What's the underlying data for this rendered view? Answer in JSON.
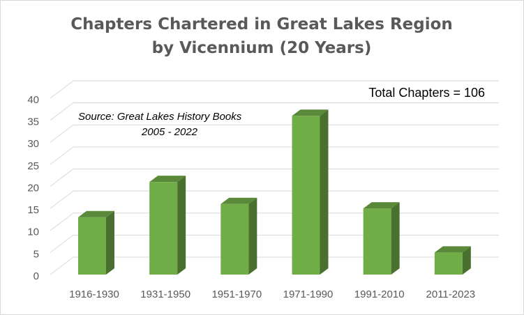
{
  "chart_data": {
    "type": "bar3d",
    "title": "Chapters Chartered in Great Lakes Region by Vicennium (20 Years)",
    "annotations": [
      "Total Chapters = 106",
      "Source:  Great Lakes History Books",
      "2005 - 2022"
    ],
    "categories": [
      "1916-1930",
      "1931-1950",
      "1951-1970",
      "1971-1990",
      "1991-2010",
      "2011-2023"
    ],
    "values": [
      13,
      21,
      16,
      36,
      15,
      5
    ],
    "color": "#70ad47",
    "ylim": [
      0,
      40
    ],
    "yticks": [
      0,
      5,
      10,
      15,
      20,
      25,
      30,
      35,
      40
    ],
    "grid": true
  }
}
